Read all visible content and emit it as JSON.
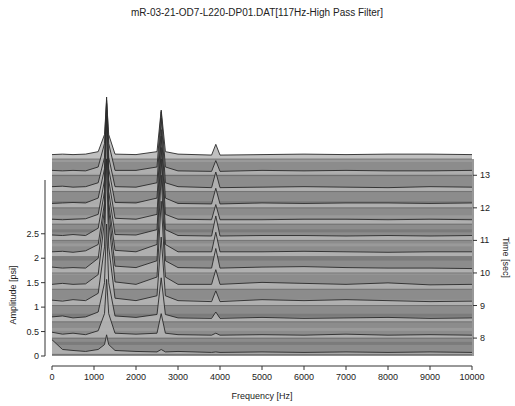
{
  "chart_data": {
    "type": "waterfall",
    "title": "mR-03-21-OD7-L220-DP01.DAT[117Hz-High Pass Filter]",
    "x_label": "Frequency [Hz]",
    "y_label": "Amplitude [psi]",
    "y2_label": "Time [sec]",
    "color": "#2a2a2a",
    "grid": false,
    "xlim": [
      0,
      10000
    ],
    "xticks": [
      0,
      1000,
      2000,
      3000,
      4000,
      5000,
      6000,
      7000,
      8000,
      9000,
      10000
    ],
    "ylim": [
      0,
      3.6
    ],
    "yticks": [
      0,
      0.5,
      1,
      1.5,
      2,
      2.5
    ],
    "y2lim": [
      7.45,
      13.5
    ],
    "y2ticks": [
      8,
      9,
      10,
      11,
      12,
      13
    ],
    "x": [
      0,
      250,
      500,
      800,
      1100,
      1250,
      1300,
      1350,
      1500,
      2000,
      2500,
      2600,
      2700,
      3000,
      3800,
      3900,
      4000,
      5000,
      6000,
      7000,
      8000,
      9000,
      10000
    ],
    "series": [
      {
        "time": 7.5,
        "values": [
          0.3,
          0.1,
          0.08,
          0.06,
          0.1,
          0.2,
          0.4,
          0.2,
          0.08,
          0.06,
          0.05,
          0.1,
          0.05,
          0.06,
          0.04,
          0.05,
          0.04,
          0.05,
          0.04,
          0.05,
          0.04,
          0.05,
          0.04
        ]
      },
      {
        "time": 8,
        "values": [
          0.12,
          0.08,
          0.1,
          0.07,
          0.15,
          0.5,
          1.2,
          0.5,
          0.1,
          0.08,
          0.1,
          0.5,
          0.1,
          0.07,
          0.06,
          0.1,
          0.06,
          0.07,
          0.06,
          0.08,
          0.06,
          0.07,
          0.06
        ]
      },
      {
        "time": 8.5,
        "values": [
          0.1,
          0.12,
          0.08,
          0.1,
          0.2,
          0.8,
          2.0,
          0.8,
          0.12,
          0.09,
          0.15,
          0.9,
          0.15,
          0.08,
          0.07,
          0.2,
          0.07,
          0.09,
          0.07,
          0.08,
          0.09,
          0.07,
          0.08
        ]
      },
      {
        "time": 9,
        "values": [
          0.11,
          0.09,
          0.12,
          0.1,
          0.25,
          1.2,
          3.0,
          1.2,
          0.15,
          0.1,
          0.2,
          1.4,
          0.2,
          0.1,
          0.08,
          0.3,
          0.08,
          0.12,
          0.1,
          0.12,
          0.1,
          0.08,
          0.09
        ]
      },
      {
        "time": 9.5,
        "values": [
          0.1,
          0.12,
          0.1,
          0.11,
          0.3,
          1.4,
          3.5,
          1.4,
          0.15,
          0.1,
          0.25,
          1.8,
          0.25,
          0.1,
          0.1,
          0.4,
          0.1,
          0.14,
          0.12,
          0.1,
          0.13,
          0.09,
          0.1
        ]
      },
      {
        "time": 10,
        "values": [
          0.12,
          0.1,
          0.11,
          0.1,
          0.3,
          1.3,
          3.2,
          1.3,
          0.14,
          0.11,
          0.25,
          2.0,
          0.25,
          0.11,
          0.1,
          0.5,
          0.1,
          0.12,
          0.13,
          0.11,
          0.1,
          0.1,
          0.09
        ]
      },
      {
        "time": 10.5,
        "values": [
          0.1,
          0.11,
          0.09,
          0.12,
          0.25,
          1.1,
          2.8,
          1.1,
          0.13,
          0.1,
          0.25,
          2.0,
          0.25,
          0.1,
          0.1,
          0.5,
          0.1,
          0.1,
          0.11,
          0.1,
          0.09,
          0.1,
          0.1
        ]
      },
      {
        "time": 11,
        "values": [
          0.11,
          0.1,
          0.12,
          0.1,
          0.25,
          1.0,
          2.5,
          1.0,
          0.12,
          0.11,
          0.22,
          1.9,
          0.22,
          0.1,
          0.09,
          0.5,
          0.09,
          0.1,
          0.1,
          0.09,
          0.1,
          0.09,
          0.1
        ]
      },
      {
        "time": 11.5,
        "values": [
          0.1,
          0.09,
          0.1,
          0.11,
          0.2,
          0.9,
          2.2,
          0.9,
          0.12,
          0.1,
          0.2,
          1.8,
          0.2,
          0.1,
          0.09,
          0.4,
          0.09,
          0.09,
          0.1,
          0.1,
          0.09,
          0.1,
          0.09
        ]
      },
      {
        "time": 12,
        "values": [
          0.09,
          0.1,
          0.11,
          0.1,
          0.2,
          0.8,
          2.0,
          0.8,
          0.11,
          0.1,
          0.2,
          1.6,
          0.2,
          0.09,
          0.08,
          0.4,
          0.08,
          0.1,
          0.09,
          0.1,
          0.1,
          0.09,
          0.1
        ]
      },
      {
        "time": 12.5,
        "values": [
          0.1,
          0.11,
          0.09,
          0.1,
          0.18,
          0.7,
          1.8,
          0.7,
          0.1,
          0.09,
          0.18,
          1.5,
          0.18,
          0.1,
          0.08,
          0.4,
          0.08,
          0.09,
          0.1,
          0.09,
          0.08,
          0.1,
          0.09
        ]
      },
      {
        "time": 13,
        "values": [
          0.1,
          0.09,
          0.1,
          0.09,
          0.17,
          0.65,
          1.6,
          0.65,
          0.1,
          0.1,
          0.17,
          1.3,
          0.17,
          0.09,
          0.08,
          0.3,
          0.08,
          0.1,
          0.09,
          0.1,
          0.09,
          0.09,
          0.1
        ]
      },
      {
        "time": 13.5,
        "values": [
          0.09,
          0.1,
          0.09,
          0.1,
          0.15,
          0.5,
          1.2,
          0.5,
          0.1,
          0.09,
          0.15,
          1.0,
          0.15,
          0.1,
          0.08,
          0.3,
          0.08,
          0.09,
          0.1,
          0.09,
          0.1,
          0.1,
          0.09
        ]
      }
    ]
  }
}
